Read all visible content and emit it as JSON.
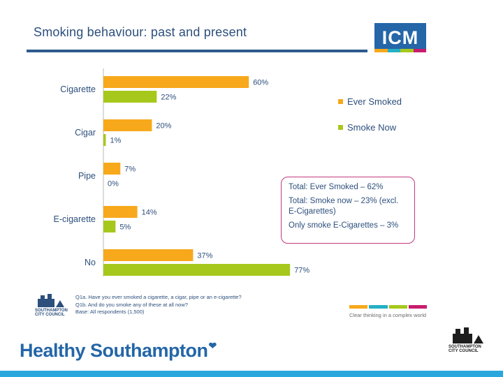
{
  "slide": {
    "title": "Smoking behaviour: past and present",
    "logo_text": "ICM",
    "logo_strip_colors": [
      "#f7a81b",
      "#25b0c4",
      "#a6c81c",
      "#c81d6d"
    ],
    "tagline": "Clear thinking in a complex world",
    "brand": "Healthy Southampton",
    "brand_heart": "❤",
    "council_name_small": "SOUTHAMPTON CITY COUNCIL",
    "council_name_big": "SOUTHAMPTON CITY COUNCIL"
  },
  "chart_data": {
    "type": "bar",
    "orientation": "horizontal",
    "categories": [
      "Cigarette",
      "Cigar",
      "Pipe",
      "E-cigarette",
      "No"
    ],
    "series": [
      {
        "name": "Ever Smoked",
        "values": [
          60,
          20,
          7,
          14,
          37
        ],
        "labels": [
          "60%",
          "20%",
          "7%",
          "14%",
          "37%"
        ],
        "color": "#f7a81b"
      },
      {
        "name": "Smoke Now",
        "values": [
          22,
          1,
          0,
          5,
          77
        ],
        "labels": [
          "22%",
          "1%",
          "0%",
          "5%",
          "77%"
        ],
        "color": "#a6c81c"
      }
    ],
    "xlim": [
      0,
      100
    ],
    "grid": false,
    "legend_position": "right"
  },
  "callout": {
    "line1": "Total: Ever Smoked – 62%",
    "line2": "Total: Smoke now – 23% (excl. E-Cigarettes)",
    "line3": "Only smoke E-Cigarettes – 3%"
  },
  "footnotes": {
    "q1": "Q1a. Have you ever smoked a cigarette, a cigar, pipe or an e-cigarette?",
    "q2": "Q1b. And do you smoke any of these at all now?",
    "base": "Base: All respondents (1,500)"
  }
}
